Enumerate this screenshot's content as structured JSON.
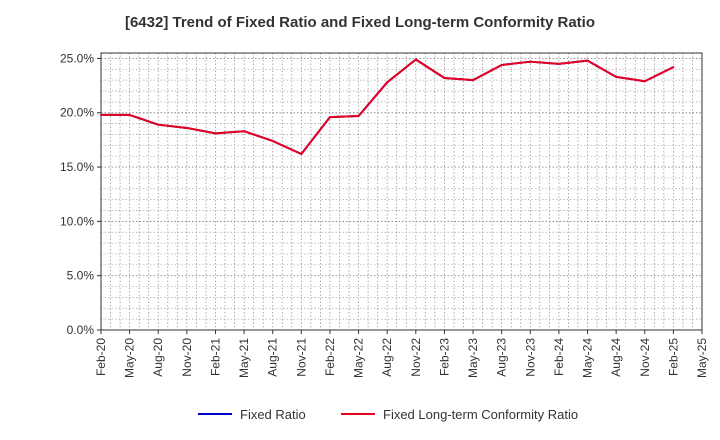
{
  "chart_data": {
    "type": "line",
    "title": "[6432]  Trend of Fixed Ratio and Fixed Long-term Conformity Ratio",
    "x": [
      "Feb-20",
      "May-20",
      "Aug-20",
      "Nov-20",
      "Feb-21",
      "May-21",
      "Aug-21",
      "Nov-21",
      "Feb-22",
      "May-22",
      "Aug-22",
      "Nov-22",
      "Feb-23",
      "May-23",
      "Aug-23",
      "Nov-23",
      "Feb-24",
      "May-24",
      "Aug-24",
      "Nov-24",
      "Feb-25"
    ],
    "x_ticks": [
      "Feb-20",
      "May-20",
      "Aug-20",
      "Nov-20",
      "Feb-21",
      "May-21",
      "Aug-21",
      "Nov-21",
      "Feb-22",
      "May-22",
      "Aug-22",
      "Nov-22",
      "Feb-23",
      "May-23",
      "Aug-23",
      "Nov-23",
      "Feb-24",
      "May-24",
      "Aug-24",
      "Nov-24",
      "Feb-25",
      "May-25"
    ],
    "y_ticks": [
      "0.0%",
      "5.0%",
      "10.0%",
      "15.0%",
      "20.0%",
      "25.0%"
    ],
    "ylim": [
      0,
      25.5
    ],
    "grid": true,
    "legend_position": "bottom",
    "series": [
      {
        "name": "Fixed Ratio",
        "color": "#0000cc",
        "values": [
          19.8,
          19.8,
          18.9,
          18.6,
          18.1,
          18.3,
          17.4,
          16.2,
          19.6,
          19.7,
          22.8,
          24.9,
          23.2,
          23.0,
          24.4,
          24.7,
          24.5,
          24.8,
          23.3,
          22.9,
          24.2
        ]
      },
      {
        "name": "Fixed Long-term Conformity Ratio",
        "color": "#e8001c",
        "values": [
          19.8,
          19.8,
          18.9,
          18.6,
          18.1,
          18.3,
          17.4,
          16.2,
          19.6,
          19.7,
          22.8,
          24.9,
          23.2,
          23.0,
          24.4,
          24.7,
          24.5,
          24.8,
          23.3,
          22.9,
          24.2
        ]
      }
    ]
  }
}
